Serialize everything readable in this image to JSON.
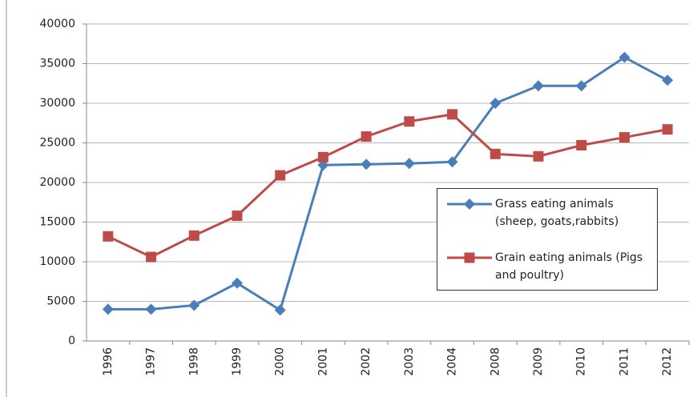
{
  "chart_data": {
    "type": "line",
    "categories": [
      "1996",
      "1997",
      "1998",
      "1999",
      "2000",
      "2001",
      "2002",
      "2003",
      "2004",
      "2008",
      "2009",
      "2010",
      "2011",
      "2012"
    ],
    "series": [
      {
        "name": "Grass eating animals (sheep, goats,rabbits)",
        "color": "#4a7ebb",
        "marker": "diamond",
        "values": [
          4000,
          4000,
          4500,
          7300,
          3900,
          22200,
          22300,
          22400,
          22600,
          30000,
          32200,
          32200,
          35800,
          32900
        ]
      },
      {
        "name": "Grain eating animals (Pigs and poultry)",
        "color": "#be4b48",
        "marker": "square",
        "values": [
          13200,
          10600,
          13300,
          15800,
          20900,
          23200,
          25800,
          27700,
          28600,
          23600,
          23300,
          24700,
          25700,
          26700
        ]
      }
    ],
    "ylim": [
      0,
      40000
    ],
    "yticks": [
      0,
      5000,
      10000,
      15000,
      20000,
      25000,
      30000,
      35000,
      40000
    ],
    "grid": true
  }
}
